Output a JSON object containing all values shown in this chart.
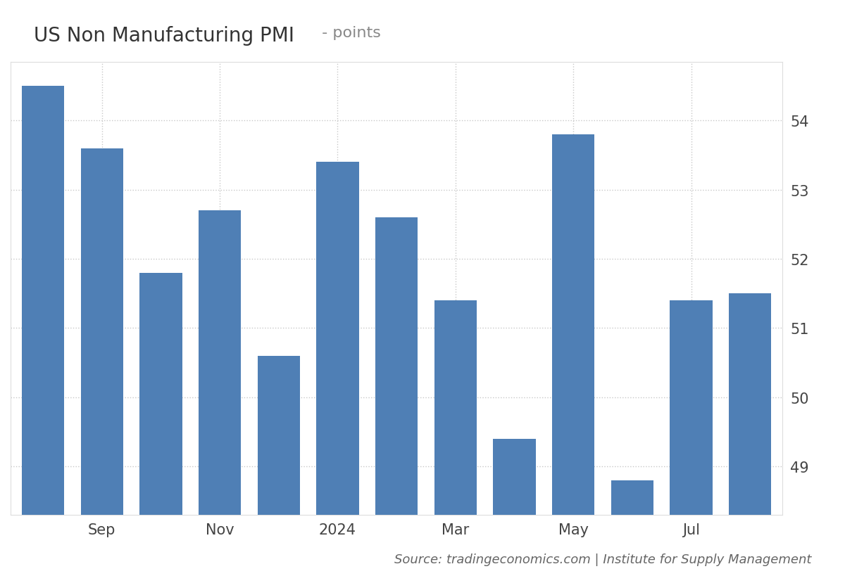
{
  "values": [
    54.5,
    53.6,
    51.8,
    52.7,
    50.6,
    53.4,
    52.6,
    51.4,
    49.4,
    53.8,
    48.8,
    51.4,
    51.5
  ],
  "bar_color": "#4f7fb5",
  "title_main": "US Non Manufacturing PMI",
  "title_sub": " - points",
  "background_color": "#ffffff",
  "plot_background": "#ffffff",
  "grid_color": "#c8c8c8",
  "ylim_min": 48.3,
  "ylim_max": 54.85,
  "yticks": [
    49,
    50,
    51,
    52,
    53,
    54
  ],
  "source_text": "Source: tradingeconomics.com | Institute for Supply Management",
  "x_tick_positions": [
    1,
    3,
    5,
    7,
    9,
    11
  ],
  "x_tick_labels": [
    "Sep",
    "Nov",
    "2024",
    "Mar",
    "May",
    "Jul"
  ],
  "title_fontsize": 20,
  "subtitle_fontsize": 16,
  "tick_fontsize": 15,
  "source_fontsize": 13
}
